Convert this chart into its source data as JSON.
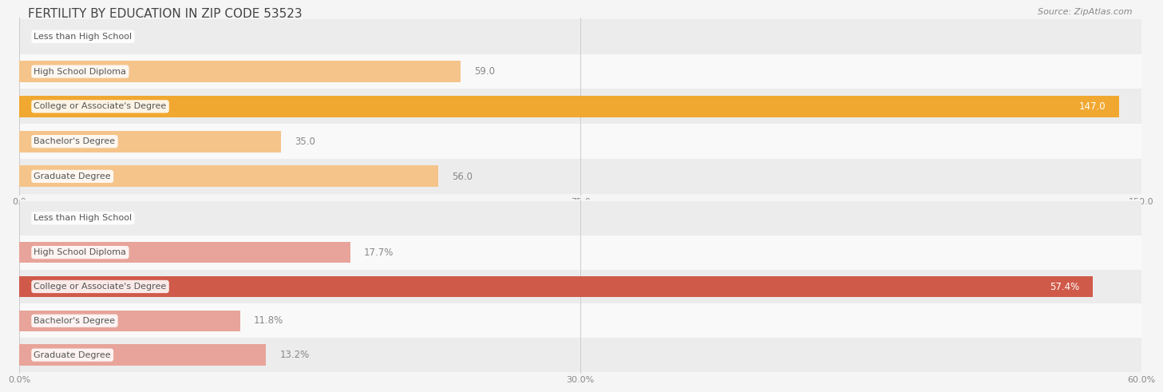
{
  "title": "FERTILITY BY EDUCATION IN ZIP CODE 53523",
  "source": "Source: ZipAtlas.com",
  "top_chart": {
    "categories": [
      "Less than High School",
      "High School Diploma",
      "College or Associate's Degree",
      "Bachelor's Degree",
      "Graduate Degree"
    ],
    "values": [
      0.0,
      59.0,
      147.0,
      35.0,
      56.0
    ],
    "xmax": 150.0,
    "xticks": [
      0.0,
      75.0,
      150.0
    ],
    "xtick_labels": [
      "0.0",
      "75.0",
      "150.0"
    ],
    "bar_color_normal": "#f5c48a",
    "bar_color_highlight": "#f0a830",
    "highlight_index": 2,
    "label_color_inside": "#ffffff",
    "label_color_outside": "#888888",
    "value_suffix": ""
  },
  "bottom_chart": {
    "categories": [
      "Less than High School",
      "High School Diploma",
      "College or Associate's Degree",
      "Bachelor's Degree",
      "Graduate Degree"
    ],
    "values": [
      0.0,
      17.7,
      57.4,
      11.8,
      13.2
    ],
    "xmax": 60.0,
    "xticks": [
      0.0,
      30.0,
      60.0
    ],
    "xtick_labels": [
      "0.0%",
      "30.0%",
      "60.0%"
    ],
    "bar_color_normal": "#e8a49a",
    "bar_color_highlight": "#d05a4a",
    "highlight_index": 2,
    "label_color_inside": "#ffffff",
    "label_color_outside": "#888888",
    "value_suffix": "%"
  },
  "bg_color": "#f5f5f5",
  "row_bg_even": "#ececec",
  "row_bg_odd": "#f9f9f9",
  "title_fontsize": 11,
  "source_fontsize": 8,
  "bar_label_fontsize": 8.5,
  "category_fontsize": 8,
  "tick_fontsize": 8
}
